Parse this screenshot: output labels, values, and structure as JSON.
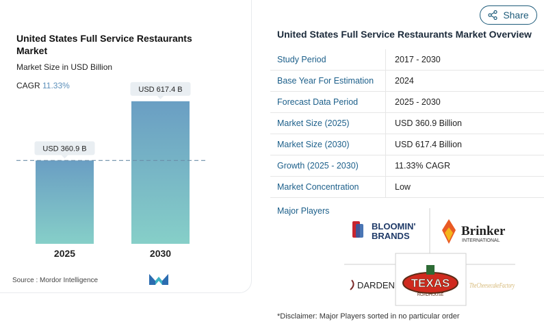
{
  "chart": {
    "title": "United States Full Service Restaurants Market",
    "subtitle": "Market Size in USD Billion",
    "cagr_label": "CAGR",
    "cagr_value": "11.33%",
    "source": "Source : Mordor Intelligence"
  },
  "chart_data": {
    "type": "bar",
    "categories": [
      "2025",
      "2030"
    ],
    "values": [
      360.9,
      617.4
    ],
    "data_labels": [
      "USD 360.9 B",
      "USD 617.4 B"
    ],
    "title": "United States Full Service Restaurants Market",
    "ylabel": "Market Size in USD Billion",
    "ylim": [
      0,
      700
    ],
    "grid": false,
    "reference_line_value": 360.9
  },
  "share": {
    "label": "Share",
    "icon": "share-icon"
  },
  "overview": {
    "title": "United States Full Service Restaurants Market Overview",
    "rows": [
      {
        "key": "Study Period",
        "value": "2017 - 2030"
      },
      {
        "key": "Base Year For Estimation",
        "value": "2024"
      },
      {
        "key": "Forecast Data Period",
        "value": "2025 - 2030"
      },
      {
        "key": "Market Size (2025)",
        "value": "USD 360.9 Billion"
      },
      {
        "key": "Market Size (2030)",
        "value": "USD 617.4 Billion"
      },
      {
        "key": "Growth (2025 - 2030)",
        "value": "11.33% CAGR"
      },
      {
        "key": "Market Concentration",
        "value": "Low"
      }
    ],
    "major_players_label": "Major Players",
    "players": [
      {
        "name": "BLOOMIN' BRANDS",
        "line1": "BLOOMIN'",
        "line2": "BRANDS"
      },
      {
        "name": "Brinker International",
        "line1": "Brinker",
        "line2": "INTERNATIONAL"
      },
      {
        "name": "DARDEN",
        "line1": "DARDEN"
      },
      {
        "name": "Texas Roadhouse",
        "line1": "TEXAS",
        "line2": "ROADHOUSE"
      },
      {
        "name": "The Cheesecake Factory",
        "line1": "TheCheesecakeFactory"
      }
    ],
    "disclaimer": "*Disclaimer: Major Players sorted in no particular order"
  },
  "colors": {
    "bar_top": "#6a9ec3",
    "bar_bottom": "#86cfc8",
    "accent": "#1c5f8a",
    "cagr": "#5b8fba",
    "label_bg": "#e9eef2"
  }
}
